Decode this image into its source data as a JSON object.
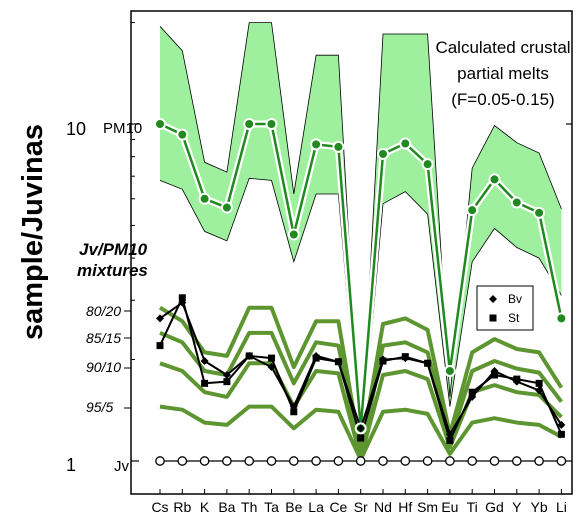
{
  "chart_data": {
    "type": "line",
    "ylabel": "sample/Juvinas",
    "yscale": "log",
    "ylim": [
      0.77,
      22
    ],
    "yticks": [
      {
        "value": 1,
        "label": "1"
      },
      {
        "value": 10,
        "label": "10"
      }
    ],
    "categories": [
      "Cs",
      "Rb",
      "K",
      "Ba",
      "Th",
      "Ta",
      "Be",
      "La",
      "Ce",
      "Sr",
      "Nd",
      "Hf",
      "Sm",
      "Eu",
      "Ti",
      "Gd",
      "Y",
      "Yb",
      "Li"
    ],
    "annotation_lines": [
      "Calculated crustal",
      "partial melts",
      "(F=0.05-0.15)"
    ],
    "mixture_title_lines": [
      "Jv/PM10",
      "mixtures"
    ],
    "series_labels": [
      {
        "series": "PM10",
        "label": "PM10"
      },
      {
        "series": "80/20",
        "label": "80/20"
      },
      {
        "series": "85/15",
        "label": "85/15"
      },
      {
        "series": "90/10",
        "label": "90/10"
      },
      {
        "series": "95/5",
        "label": "95/5"
      },
      {
        "series": "Jv",
        "label": "Jv"
      }
    ],
    "melt_band": {
      "upper": [
        19.5,
        16.5,
        7.7,
        7.2,
        20,
        20,
        6.2,
        16,
        16,
        1.1,
        18.5,
        18.5,
        18.5,
        1.55,
        7.4,
        9.9,
        8.8,
        8.2,
        5.6
      ],
      "lower": [
        6.8,
        6.4,
        4.8,
        4.5,
        6.9,
        6.8,
        3.9,
        6.2,
        6.2,
        1.05,
        5.8,
        6.3,
        5.4,
        1.45,
        3.9,
        4.9,
        4.3,
        4.0,
        3.1
      ]
    },
    "series": [
      {
        "name": "PM10",
        "color": "#208a20",
        "markers": true,
        "values": [
          10,
          9.3,
          6.0,
          5.65,
          10,
          10,
          4.7,
          8.7,
          8.55,
          1.25,
          8.15,
          8.75,
          7.6,
          1.85,
          5.55,
          6.85,
          5.85,
          5.45,
          2.65
        ]
      },
      {
        "name": "80/20",
        "color": "#5d9630",
        "values": [
          2.85,
          2.6,
          2.1,
          2.05,
          2.85,
          2.85,
          1.9,
          2.6,
          2.6,
          1.05,
          2.55,
          2.65,
          2.45,
          1.2,
          2.1,
          2.3,
          2.15,
          2.1,
          1.65
        ]
      },
      {
        "name": "85/15",
        "color": "#5d9630",
        "values": [
          2.4,
          2.25,
          1.85,
          1.8,
          2.4,
          2.4,
          1.7,
          2.25,
          2.2,
          1.04,
          2.2,
          2.25,
          2.1,
          1.15,
          1.85,
          1.98,
          1.88,
          1.83,
          1.5
        ]
      },
      {
        "name": "90/10",
        "color": "#5d9630",
        "values": [
          1.95,
          1.85,
          1.6,
          1.55,
          1.95,
          1.95,
          1.45,
          1.85,
          1.82,
          1.02,
          1.8,
          1.85,
          1.75,
          1.1,
          1.6,
          1.68,
          1.6,
          1.57,
          1.35
        ]
      },
      {
        "name": "95/5",
        "color": "#5d9630",
        "values": [
          1.45,
          1.42,
          1.3,
          1.28,
          1.45,
          1.45,
          1.25,
          1.42,
          1.4,
          1.01,
          1.4,
          1.42,
          1.38,
          1.05,
          1.3,
          1.34,
          1.3,
          1.28,
          1.18
        ]
      },
      {
        "name": "Bv",
        "color": "#000000",
        "marker": "diamond",
        "values": [
          2.65,
          2.95,
          1.98,
          1.8,
          2.05,
          1.9,
          1.45,
          2.05,
          1.97,
          1.25,
          2.0,
          2.02,
          1.95,
          1.2,
          1.55,
          1.85,
          1.72,
          1.62,
          1.28
        ]
      },
      {
        "name": "St",
        "color": "#000000",
        "marker": "square",
        "values": [
          2.2,
          3.05,
          1.7,
          1.72,
          2.05,
          2.02,
          1.4,
          2.02,
          1.97,
          1.17,
          1.98,
          2.04,
          1.95,
          1.15,
          1.6,
          1.8,
          1.75,
          1.7,
          1.2
        ]
      },
      {
        "name": "Jv",
        "color": "#000000",
        "marker": "open-circle",
        "values": [
          1,
          1,
          1,
          1,
          1,
          1,
          1,
          1,
          1,
          1,
          1,
          1,
          1,
          1,
          1,
          1,
          1,
          1,
          1
        ]
      }
    ],
    "legend": {
      "placement": "right",
      "entries": [
        {
          "label": "Bv",
          "marker": "diamond"
        },
        {
          "label": "St",
          "marker": "square"
        }
      ]
    },
    "colors": {
      "band_fill": "#9ef09e",
      "band_edge": "#000000",
      "pm10_line": "#208a20",
      "mixture_line": "#5d9630",
      "sample_line": "#000000"
    },
    "grid": false
  }
}
